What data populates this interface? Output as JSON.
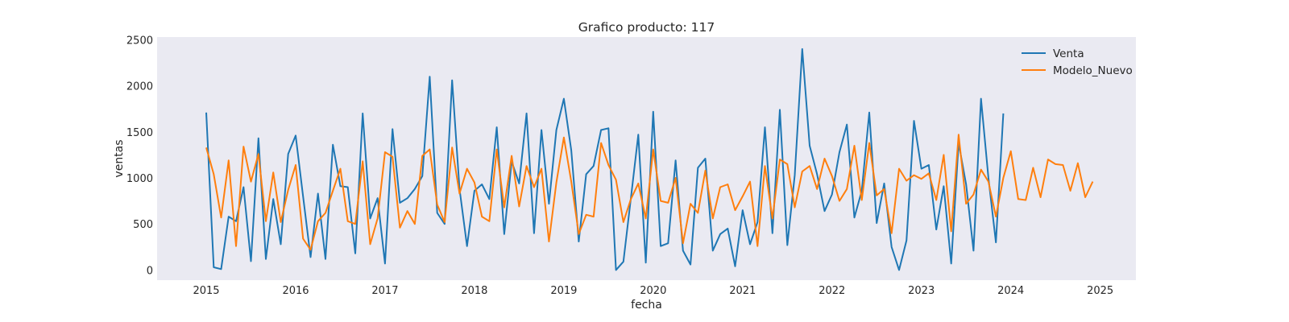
{
  "chart_data": {
    "type": "line",
    "title": "Grafico producto: 117",
    "xlabel": "fecha",
    "ylabel": "ventas",
    "ylim": [
      -110,
      2530
    ],
    "xlim": [
      2014.45,
      2025.4
    ],
    "x_ticks": [
      2015,
      2016,
      2017,
      2018,
      2019,
      2020,
      2021,
      2022,
      2023,
      2024,
      2025
    ],
    "x_tick_labels": [
      "2015",
      "2016",
      "2017",
      "2018",
      "2019",
      "2020",
      "2021",
      "2022",
      "2023",
      "2024",
      "2025"
    ],
    "y_ticks": [
      0,
      500,
      1000,
      1500,
      2000,
      2500
    ],
    "y_tick_labels": [
      "0",
      "500",
      "1000",
      "1500",
      "2000",
      "2500"
    ],
    "grid": false,
    "legend_position": "top-right",
    "series": [
      {
        "name": "Venta",
        "color": "#1f77b4",
        "x_start": "2015-01",
        "frequency": "monthly",
        "values": [
          1710,
          30,
          10,
          580,
          530,
          900,
          95,
          1430,
          120,
          770,
          280,
          1260,
          1460,
          800,
          140,
          830,
          120,
          1360,
          910,
          900,
          180,
          1700,
          560,
          780,
          70,
          1530,
          730,
          780,
          880,
          1020,
          2100,
          620,
          500,
          2060,
          880,
          260,
          860,
          930,
          770,
          1550,
          390,
          1180,
          940,
          1700,
          400,
          1520,
          720,
          1520,
          1860,
          1300,
          310,
          1040,
          1130,
          1520,
          1540,
          0,
          90,
          780,
          1470,
          80,
          1720,
          260,
          290,
          1190,
          210,
          60,
          1110,
          1210,
          210,
          390,
          450,
          40,
          650,
          280,
          520,
          1550,
          400,
          1740,
          270,
          1030,
          2400,
          1350,
          1040,
          640,
          820,
          1280,
          1580,
          570,
          860,
          1710,
          510,
          940,
          250,
          0,
          320,
          1620,
          1100,
          1140,
          440,
          910,
          70,
          1380,
          930,
          210,
          1860,
          1000,
          300,
          1700
        ]
      },
      {
        "name": "Modelo_Nuevo",
        "color": "#ff7f0e",
        "x_start": "2015-01",
        "frequency": "monthly",
        "values": [
          1330,
          1040,
          570,
          1190,
          260,
          1340,
          960,
          1260,
          530,
          1060,
          520,
          870,
          1140,
          340,
          220,
          530,
          620,
          860,
          1100,
          530,
          500,
          1180,
          280,
          560,
          1280,
          1230,
          460,
          640,
          500,
          1240,
          1310,
          710,
          520,
          1330,
          830,
          1100,
          950,
          580,
          530,
          1310,
          680,
          1240,
          690,
          1130,
          900,
          1100,
          310,
          950,
          1440,
          960,
          390,
          600,
          580,
          1380,
          1140,
          980,
          520,
          770,
          940,
          560,
          1310,
          750,
          730,
          1000,
          290,
          720,
          620,
          1080,
          560,
          900,
          930,
          650,
          800,
          960,
          260,
          1130,
          560,
          1200,
          1150,
          680,
          1070,
          1130,
          880,
          1210,
          1020,
          750,
          880,
          1350,
          760,
          1380,
          810,
          880,
          400,
          1100,
          970,
          1030,
          990,
          1050,
          760,
          1250,
          420,
          1470,
          720,
          820,
          1090,
          960,
          580,
          1000,
          1290,
          770,
          760,
          1110,
          790,
          1200,
          1150,
          1140,
          860,
          1160,
          790,
          960
        ]
      }
    ]
  }
}
